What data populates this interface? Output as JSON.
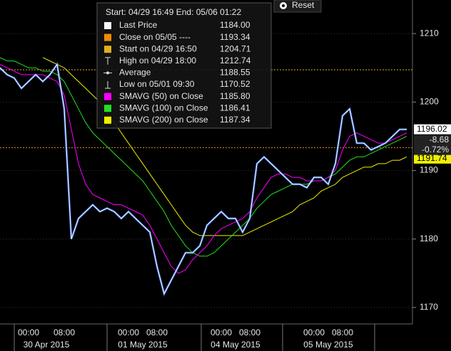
{
  "chart_data": {
    "type": "line",
    "header": "Start: 04/29 16:49 End: 05/06 01:22",
    "reset": "Reset",
    "categories": [
      null,
      null,
      null,
      null,
      "00:00",
      null,
      null,
      null,
      null,
      "08:00",
      null,
      null,
      null,
      null,
      null,
      null,
      null,
      null,
      "00:00",
      null,
      null,
      null,
      "08:00",
      null,
      null,
      null,
      null,
      null,
      null,
      null,
      null,
      "00:00",
      null,
      null,
      null,
      "08:00",
      null,
      null,
      null,
      null,
      null,
      null,
      null,
      null,
      "00:00",
      null,
      null,
      null,
      "08:00",
      null,
      null,
      null,
      null,
      null,
      null,
      null,
      null,
      null
    ],
    "x_groups": [
      "30 Apr 2015",
      "01 May 2015",
      "04 May 2015",
      "05 May 2015"
    ],
    "ylim": [
      1167.6,
      1214.9
    ],
    "yticks": [
      1170,
      1180,
      1190,
      1200,
      1210
    ],
    "grid": true,
    "series": [
      {
        "name": "Last Price",
        "color": "#f2f6ff",
        "summary": {
          "value": 1184,
          "label": "1184.00"
        },
        "values": [
          1205,
          1204,
          1203.5,
          1202,
          1203,
          1204,
          1203,
          1204,
          1205.5,
          1199,
          1180,
          1183,
          1184,
          1185,
          1184,
          1184.5,
          1184,
          1183,
          1184,
          1183,
          1182,
          1181,
          1176,
          1172,
          1174,
          1176,
          1178,
          1178,
          1179,
          1182,
          1183,
          1184,
          1183,
          1183,
          1181,
          1183,
          1191,
          1192,
          1191,
          1190,
          1189,
          1188,
          1188,
          1187.5,
          1189,
          1189,
          1188,
          1191,
          1198,
          1199,
          1194,
          1194,
          1193,
          1193.5,
          1194,
          1195,
          1196,
          1196
        ]
      },
      {
        "name": "SMAVG (50) on Close",
        "color": "#ff00ff",
        "summary": {
          "value": 1185.8,
          "label": "1185.80"
        },
        "values": [
          1205.5,
          1205,
          1204.5,
          1204,
          1204,
          1204,
          1204,
          1203.5,
          1203,
          1201,
          1196,
          1191,
          1188,
          1186.5,
          1186,
          1185.5,
          1185,
          1185,
          1184.5,
          1184,
          1183.5,
          1182,
          1180,
          1178,
          1176,
          1175,
          1175.5,
          1177,
          1178,
          1179,
          1180.5,
          1181.5,
          1182,
          1182.5,
          1183,
          1184,
          1186,
          1187.5,
          1189,
          1189.5,
          1189.5,
          1189,
          1189,
          1188.5,
          1188.5,
          1188.5,
          1189,
          1190,
          1193,
          1195,
          1195.5,
          1195,
          1194.5,
          1194,
          1194,
          1194.5,
          1195,
          1195.5
        ]
      },
      {
        "name": "SMAVG (100) on Close",
        "color": "#22e022",
        "summary": 1186.41,
        "values": [
          1206.5,
          1206,
          1206,
          1205.5,
          1205,
          1205,
          1204.5,
          1204.5,
          1204,
          1203,
          1201,
          1199,
          1197,
          1195.5,
          1194.5,
          1193.5,
          1192.5,
          1191.5,
          1190.5,
          1189.5,
          1188.5,
          1187,
          1185.5,
          1184,
          1182,
          1180.5,
          1179,
          1178,
          1177.5,
          1177.5,
          1178,
          1179,
          1180,
          1181,
          1182,
          1183,
          1184.5,
          1185.5,
          1186.5,
          1187,
          1187.5,
          1188,
          1188,
          1188,
          1188.5,
          1188.5,
          1189,
          1189.5,
          1190.5,
          1191.5,
          1192,
          1192,
          1192.5,
          1193,
          1193.5,
          1194,
          1194.5,
          1195
        ]
      },
      {
        "name": "SMAVG (200) on Close",
        "color": "#f0f000",
        "summary": 1187.34,
        "values": [
          null,
          null,
          null,
          null,
          null,
          null,
          1206.5,
          1206,
          1205.5,
          1205,
          1204,
          1203,
          1202,
          1201,
          1200,
          1198.5,
          1197,
          1195.5,
          1194,
          1192.5,
          1191,
          1189.5,
          1188,
          1186.5,
          1185,
          1183.5,
          1182,
          1181,
          1180.5,
          1180.5,
          1180.5,
          1180.5,
          1180.5,
          1180.5,
          1180.5,
          1181,
          1181.5,
          1182,
          1182.5,
          1183,
          1183.5,
          1184,
          1185,
          1185.5,
          1186,
          1187,
          1187.5,
          1188,
          1189,
          1189.5,
          1190,
          1190.5,
          1190.5,
          1191,
          1191,
          1191.5,
          1191.5,
          1192
        ]
      }
    ],
    "stats": [
      {
        "name": "Close on 05/05 ----",
        "value": 1193.34,
        "color": "#f08c00",
        "marker": "square",
        "reference_line": true
      },
      {
        "name": "Start on 04/29 16:50",
        "value": 1204.71,
        "color": "#e0b020",
        "marker": "square",
        "reference_line": true
      },
      {
        "name": "High on 04/29 18:00",
        "value": 1212.74,
        "marker": "high"
      },
      {
        "name": "Average",
        "value": 1188.55,
        "marker": "average"
      },
      {
        "name": "Low on 05/01 09:30",
        "value": 1170.52,
        "marker": "low"
      }
    ],
    "price_tags": {
      "last": 1196.02,
      "change": -8.68,
      "change_pct": {
        "value": -0.72,
        "label": "-0.72%"
      },
      "smavg_200_last": 1191.74
    }
  }
}
